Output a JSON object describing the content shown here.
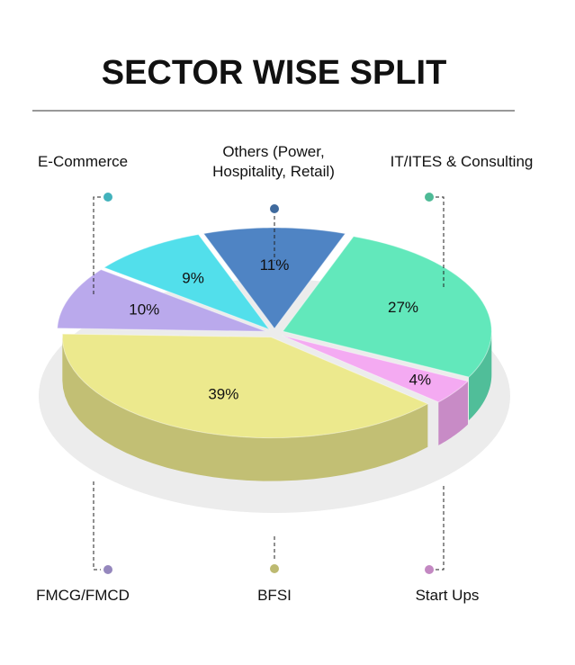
{
  "chart_data": {
    "type": "pie",
    "title": "SECTOR WISE SPLIT",
    "categories": [
      "Others (Power, Hospitality, Retail)",
      "IT/ITES & Consulting",
      "Start Ups",
      "BFSI",
      "FMCG/FMCD",
      "E-Commerce"
    ],
    "values": [
      11,
      27,
      4,
      39,
      10,
      9
    ],
    "value_labels": [
      "11%",
      "27%",
      "4%",
      "39%",
      "10%",
      "9%"
    ],
    "colors": [
      "#4f84c4",
      "#62e8bb",
      "#f4aaf2",
      "#ece98d",
      "#baa9ec",
      "#52dfeb"
    ]
  }
}
